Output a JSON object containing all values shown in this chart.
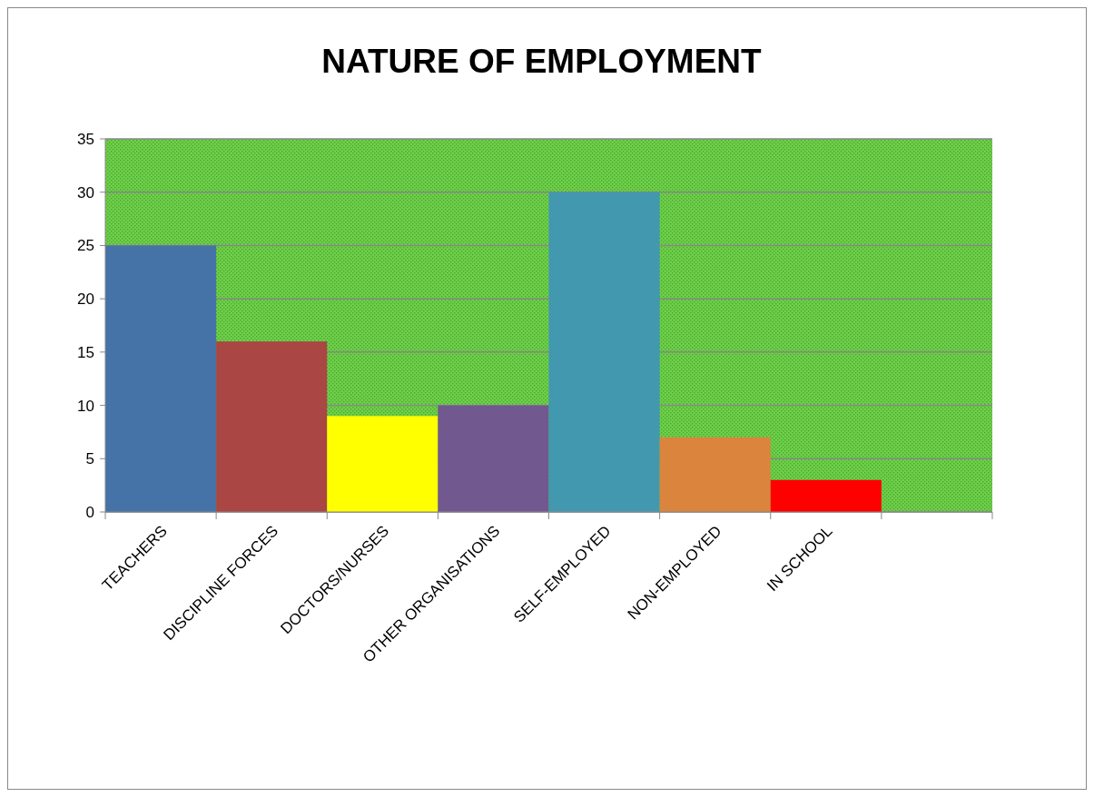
{
  "chart_data": {
    "type": "bar",
    "title": "NATURE OF EMPLOYMENT",
    "categories": [
      "TEACHERS",
      "DISCIPLINE FORCES",
      "DOCTORS/NURSES",
      "OTHER ORGANISATIONS",
      "SELF-EMPLOYED",
      "NON-EMPLOYED",
      "IN SCHOOL",
      null
    ],
    "values": [
      25,
      16,
      9,
      10,
      30,
      7,
      3,
      null
    ],
    "colors": [
      "#4572a7",
      "#aa4643",
      "#ffff00",
      "#71588f",
      "#4198af",
      "#db843d",
      "#ff0000",
      null
    ],
    "ylim": [
      0,
      35
    ],
    "yticks": [
      0,
      5,
      10,
      15,
      20,
      25,
      30,
      35
    ],
    "grid": "y"
  }
}
